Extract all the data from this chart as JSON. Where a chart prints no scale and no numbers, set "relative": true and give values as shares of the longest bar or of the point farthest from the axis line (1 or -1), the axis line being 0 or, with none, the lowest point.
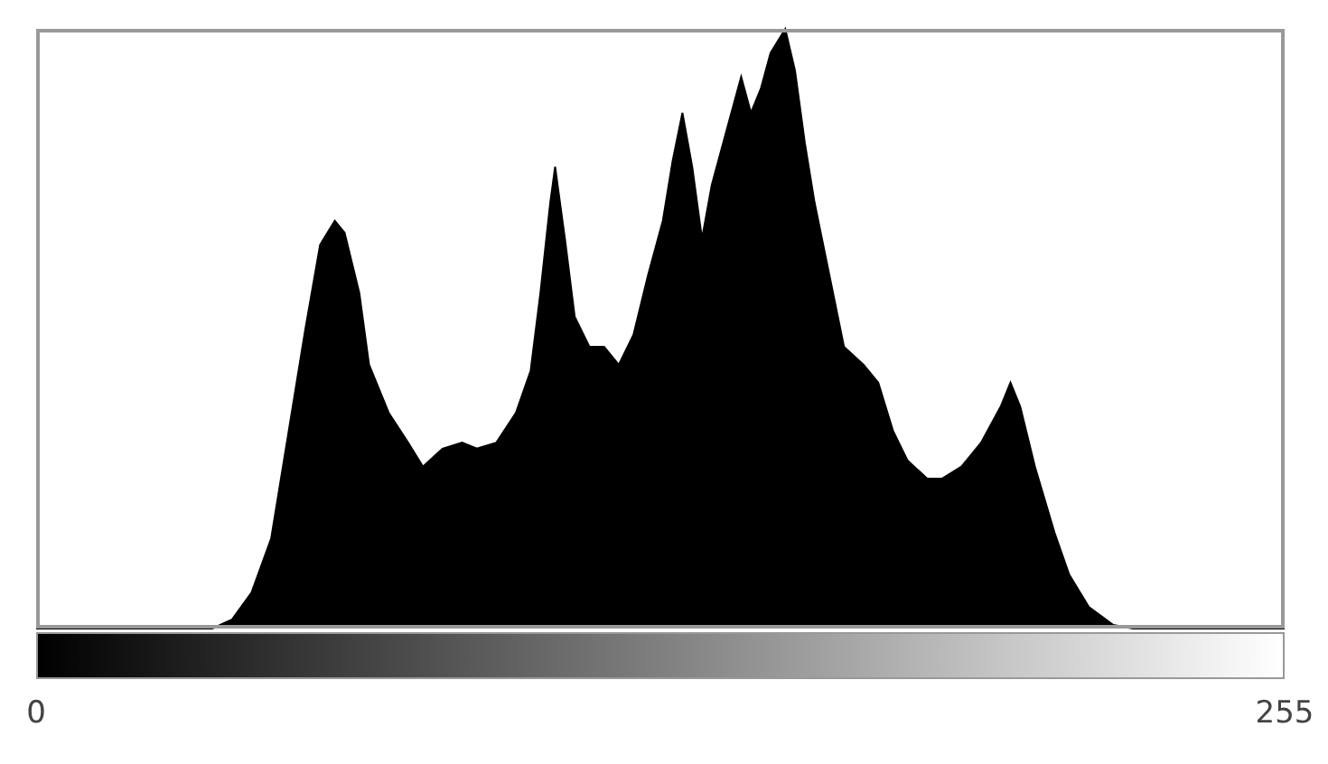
{
  "chart_data": {
    "type": "area",
    "relative": true,
    "color": "#000000",
    "xlim": [
      0,
      255
    ],
    "xticks": [
      0,
      255
    ],
    "x": [
      0,
      36,
      40,
      44,
      48,
      51,
      55,
      58,
      61,
      63,
      66,
      68,
      72,
      76,
      79,
      83,
      87,
      90,
      94,
      98,
      101,
      103,
      105,
      106,
      108,
      110,
      113,
      116,
      119,
      122,
      125,
      128,
      130,
      132,
      134,
      136,
      138,
      141,
      144,
      146,
      148,
      150,
      153,
      155,
      157,
      159,
      162,
      165,
      169,
      172,
      175,
      178,
      182,
      185,
      189,
      193,
      197,
      199,
      201,
      204,
      208,
      211,
      215,
      220,
      224,
      255
    ],
    "values": [
      0,
      0,
      0.015,
      0.06,
      0.15,
      0.3,
      0.5,
      0.64,
      0.68,
      0.66,
      0.56,
      0.44,
      0.36,
      0.31,
      0.27,
      0.3,
      0.31,
      0.3,
      0.31,
      0.36,
      0.43,
      0.56,
      0.71,
      0.77,
      0.65,
      0.52,
      0.47,
      0.47,
      0.44,
      0.49,
      0.59,
      0.68,
      0.78,
      0.86,
      0.77,
      0.65,
      0.74,
      0.83,
      0.92,
      0.86,
      0.9,
      0.96,
      1,
      0.93,
      0.81,
      0.71,
      0.59,
      0.47,
      0.44,
      0.41,
      0.33,
      0.28,
      0.25,
      0.25,
      0.27,
      0.31,
      0.37,
      0.41,
      0.37,
      0.27,
      0.16,
      0.09,
      0.036,
      0.006,
      0,
      0
    ]
  }
}
